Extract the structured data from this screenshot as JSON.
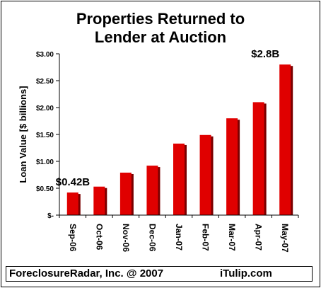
{
  "chart_data": {
    "type": "bar",
    "title_lines": [
      "Properties Returned to",
      "Lender at Auction"
    ],
    "ylabel": "Loan Value [$ billions]",
    "categories": [
      "Sep-06",
      "Oct-06",
      "Nov-06",
      "Dec-06",
      "Jan-07",
      "Feb-07",
      "Mar-07",
      "Apr-07",
      "May-07"
    ],
    "values": [
      0.42,
      0.53,
      0.79,
      0.92,
      1.33,
      1.49,
      1.8,
      2.1,
      2.8
    ],
    "ylim": [
      0,
      3.0
    ],
    "yticks": [
      0,
      0.5,
      1.0,
      1.5,
      2.0,
      2.5,
      3.0
    ],
    "ytick_labels": [
      "$-",
      "$0.50",
      "$1.00",
      "$1.50",
      "$2.00",
      "$2.50",
      "$3.00"
    ],
    "annotations": [
      {
        "text": "$0.42B",
        "category": "Sep-06"
      },
      {
        "text": "$2.8B",
        "category": "May-07"
      }
    ],
    "bar_color": "#e00000",
    "bar_shadow_color": "#7a0000",
    "grid": false,
    "legend": "none"
  },
  "footer": {
    "left": "ForeclosureRadar, Inc. @ 2007",
    "right": "iTulip.com"
  }
}
